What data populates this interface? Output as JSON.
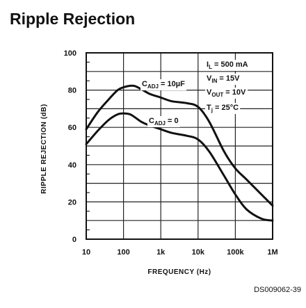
{
  "title": "Ripple Rejection",
  "figure_code": "DS009062-39",
  "chart_data": {
    "type": "line",
    "xlabel": "FREQUENCY (Hz)",
    "ylabel": "RIPPLE REJECTION (dB)",
    "x_scale": "log",
    "xlim": [
      10,
      1000000
    ],
    "ylim": [
      0,
      100
    ],
    "x_ticks": [
      10,
      100,
      1000,
      10000,
      100000,
      1000000
    ],
    "x_tick_labels": [
      "10",
      "100",
      "1k",
      "10k",
      "100k",
      "1M"
    ],
    "y_ticks": [
      0,
      20,
      40,
      60,
      80,
      100
    ],
    "y_tick_labels": [
      "0",
      "20",
      "40",
      "60",
      "80",
      "100"
    ],
    "grid": true,
    "conditions": [
      {
        "sym": "I",
        "sub": "L",
        "rest": " = 500 mA"
      },
      {
        "sym": "V",
        "sub": "IN",
        "rest": " = 15V"
      },
      {
        "sym": "V",
        "sub": "OUT",
        "rest": " = 10V"
      },
      {
        "sym": "T",
        "sub": "j",
        "rest": " = 25°C"
      }
    ],
    "series": [
      {
        "name": "CADJ = 10µF",
        "label_sym": "C",
        "label_sub": "ADJ",
        "label_rest": " = 10µF",
        "x": [
          10,
          20,
          40,
          70,
          100,
          150,
          200,
          300,
          500,
          1000,
          2000,
          5000,
          10000,
          20000,
          50000,
          100000,
          200000,
          500000,
          1000000
        ],
        "y": [
          59,
          68,
          75,
          80,
          81.5,
          82.3,
          82.2,
          80.5,
          78,
          76,
          74,
          73,
          71,
          63,
          47,
          38,
          32,
          24,
          18
        ]
      },
      {
        "name": "CADJ = 0",
        "label_sym": "C",
        "label_sub": "ADJ",
        "label_rest": " = 0",
        "x": [
          10,
          20,
          40,
          70,
          100,
          150,
          200,
          300,
          500,
          1000,
          2000,
          5000,
          10000,
          20000,
          50000,
          100000,
          200000,
          500000,
          1000000
        ],
        "y": [
          51,
          58,
          64,
          67,
          67.5,
          67,
          65.5,
          63,
          61,
          59,
          57,
          55.5,
          53.5,
          47,
          34,
          24,
          16,
          11,
          10
        ]
      }
    ]
  }
}
